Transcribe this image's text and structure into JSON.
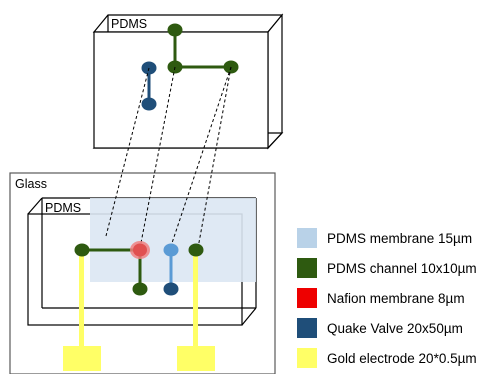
{
  "diagram": {
    "top_block_label": "PDMS",
    "glass_label": "Glass",
    "bottom_block_label": "PDMS"
  },
  "legend": {
    "items": [
      {
        "label": "PDMS membrane 15µm",
        "color": "#b9d2e8",
        "icon": "pdms-membrane-swatch"
      },
      {
        "label": "PDMS channel 10x10µm",
        "color": "#2e5a10",
        "icon": "pdms-channel-swatch"
      },
      {
        "label": "Nafion membrane 8µm",
        "color": "#ee0000",
        "icon": "nafion-membrane-swatch"
      },
      {
        "label": "Quake Valve 20x50µm",
        "color": "#1f4e79",
        "icon": "quake-valve-swatch"
      },
      {
        "label": "Gold electrode 20*0.5µm",
        "color": "#ffff66",
        "icon": "gold-electrode-swatch"
      }
    ]
  },
  "colors": {
    "channel": "#2e5a10",
    "valve": "#1f4e79",
    "valve_light": "#5b9bd5",
    "membrane": "#dbe7f3",
    "nafion": "#e05a5a",
    "gold": "#ffff66"
  }
}
